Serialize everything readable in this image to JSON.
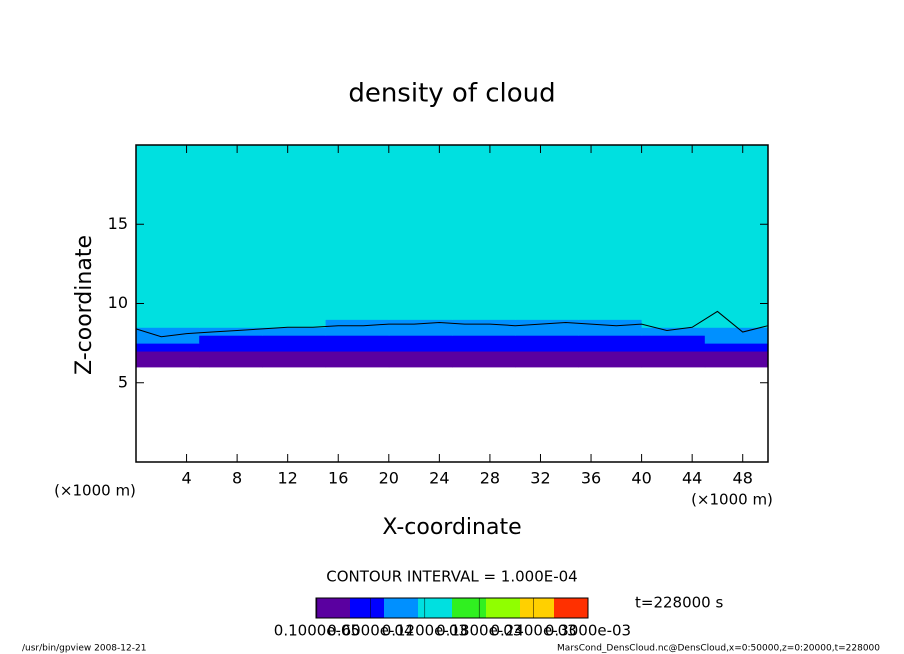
{
  "chart_data": {
    "type": "contour-field",
    "title": "density of cloud",
    "xlabel": "X-coordinate",
    "ylabel": "Z-coordinate",
    "x_unit": "(×1000 m)",
    "y_unit": "(×1000 m)",
    "xlim": [
      0,
      50
    ],
    "xticks": [
      4,
      8,
      12,
      16,
      20,
      24,
      28,
      32,
      36,
      40,
      44,
      48
    ],
    "ylim": [
      0,
      20
    ],
    "yticks": [
      5,
      10,
      15
    ],
    "field": {
      "x_edges": [
        0,
        5,
        10,
        15,
        20,
        25,
        30,
        35,
        40,
        45,
        50
      ],
      "z_edges": [
        0,
        6,
        6.5,
        7,
        7.5,
        8,
        8.5,
        9,
        12,
        20
      ],
      "values": [
        [
          0,
          0,
          0,
          0,
          0,
          0,
          0,
          0,
          0,
          0
        ],
        [
          1.5e-05,
          1.5e-05,
          1.4e-05,
          1.6e-05,
          1.5e-05,
          1.5e-05,
          1.4e-05,
          1.5e-05,
          1.6e-05,
          1.5e-05
        ],
        [
          3.5e-05,
          3e-05,
          3e-05,
          2.8e-05,
          3.2e-05,
          3e-05,
          2.9e-05,
          3e-05,
          3.1e-05,
          3.4e-05
        ],
        [
          6e-05,
          5e-05,
          4.8e-05,
          5e-05,
          5.2e-05,
          5e-05,
          5.1e-05,
          4.9e-05,
          5e-05,
          6.2e-05
        ],
        [
          9e-05,
          7e-05,
          6.8e-05,
          7e-05,
          7.2e-05,
          7e-05,
          7.1e-05,
          6.9e-05,
          7e-05,
          9e-05
        ],
        [
          0.00011,
          9e-05,
          8.8e-05,
          9e-05,
          9.2e-05,
          9e-05,
          9.1e-05,
          8.9e-05,
          9e-05,
          0.00011
        ],
        [
          0.00013,
          0.00012,
          0.000115,
          0.00011,
          0.000112,
          0.00011,
          0.00011,
          0.000112,
          0.000115,
          0.000125
        ],
        [
          0.00014,
          0.000138,
          0.000135,
          0.000135,
          0.000136,
          0.000135,
          0.000134,
          0.000135,
          0.000136,
          0.000138
        ],
        [
          0.000148,
          0.000145,
          0.000144,
          0.000145,
          0.000145,
          0.000146,
          0.000145,
          0.000144,
          0.000145,
          0.000145
        ]
      ]
    },
    "contour": {
      "level": 0.0001,
      "x": [
        0,
        2,
        4,
        6,
        8,
        10,
        12,
        14,
        16,
        18,
        20,
        22,
        24,
        26,
        28,
        30,
        32,
        34,
        36,
        38,
        40,
        42,
        44,
        46,
        48,
        50
      ],
      "z": [
        8.4,
        7.9,
        8.1,
        8.2,
        8.3,
        8.4,
        8.5,
        8.5,
        8.6,
        8.6,
        8.7,
        8.7,
        8.8,
        8.7,
        8.7,
        8.6,
        8.7,
        8.8,
        8.7,
        8.6,
        8.7,
        8.3,
        8.5,
        9.5,
        8.2,
        8.6
      ]
    },
    "colormap": [
      "#5a00a0",
      "#0000ff",
      "#0090ff",
      "#00e0e0",
      "#30f020",
      "#90ff00",
      "#ffd000",
      "#ff3000"
    ],
    "clim": [
      0,
      0.0003
    ],
    "colorbar_ticks": [
      {
        "value": 1e-06,
        "label": "0.1000e-05"
      },
      {
        "value": 6e-05,
        "label": "0.6000e-04"
      },
      {
        "value": 0.00012,
        "label": "0.1200e-03"
      },
      {
        "value": 0.00018,
        "label": "0.1800e-03"
      },
      {
        "value": 0.00024,
        "label": "0.2400e-03"
      },
      {
        "value": 0.0003,
        "label": "0.3000e-03"
      }
    ],
    "contour_interval": "CONTOUR INTERVAL = 1.000E-04",
    "time": "t=228000 s",
    "footer_left": "/usr/bin/gpview  2008-12-21",
    "footer_right": "MarsCond_DensCloud.nc@DensCloud,x=0:50000,z=0:20000,t=228000"
  }
}
